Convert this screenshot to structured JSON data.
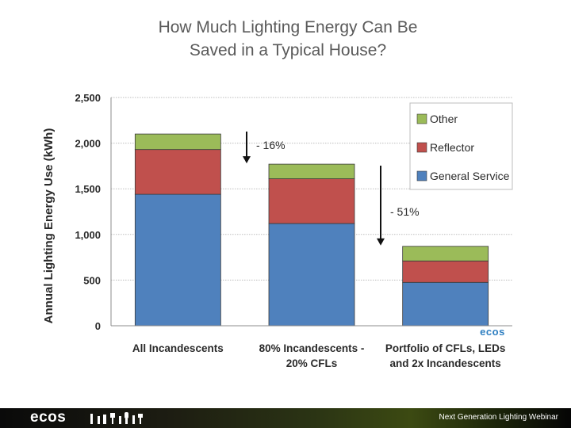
{
  "slide": {
    "title_line1": "How Much Lighting Energy Can Be",
    "title_line2": "Saved in a Typical House?",
    "footer_logo": "ecos",
    "footer_text": "Next Generation Lighting Webinar"
  },
  "chart_data": {
    "type": "bar",
    "stacked": true,
    "categories": [
      [
        "All Incandescents"
      ],
      [
        "80% Incandescents -",
        "20% CFLs"
      ],
      [
        "Portfolio of CFLs, LEDs",
        "and 2x Incandescents"
      ]
    ],
    "series": [
      {
        "name": "General Service",
        "values": [
          1440,
          1120,
          475
        ],
        "color": "#4f81bd"
      },
      {
        "name": "Reflector",
        "values": [
          490,
          490,
          235
        ],
        "color": "#c0504d"
      },
      {
        "name": "Other",
        "values": [
          170,
          160,
          160
        ],
        "color": "#9bbb59"
      }
    ],
    "legend_order": [
      "Other",
      "Reflector",
      "General Service"
    ],
    "legend_position": "top-right",
    "xlabel": "",
    "ylabel": "Annual Lighting Energy Use (kWh)",
    "ylim": [
      0,
      2500
    ],
    "yticks": [
      0,
      500,
      1000,
      1500,
      2000,
      2500
    ],
    "ytick_labels": [
      "0",
      "500",
      "1,000",
      "1,500",
      "2,000",
      "2,500"
    ],
    "grid": true,
    "annotations": [
      {
        "text": "- 16%",
        "from_category": 0,
        "to_category": 1
      },
      {
        "text": "- 51%",
        "from_category": 1,
        "to_category": 2
      }
    ],
    "watermark": "ecos"
  }
}
